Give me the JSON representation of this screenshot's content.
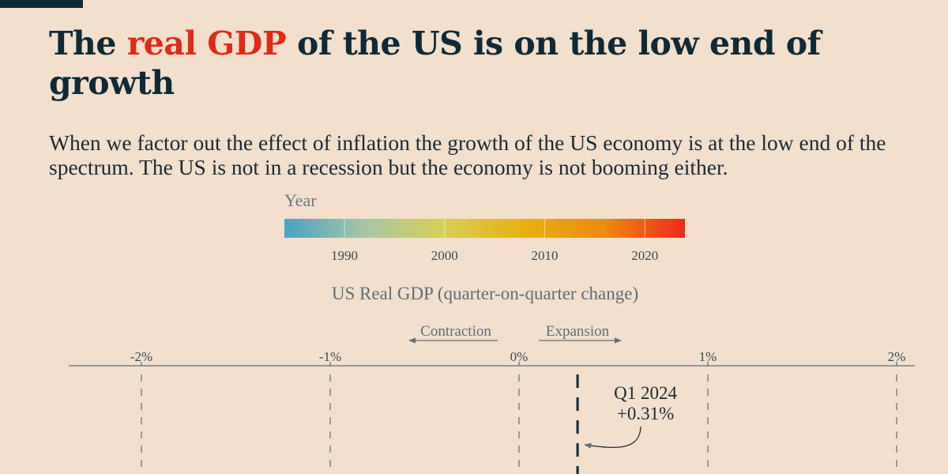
{
  "colors": {
    "background": "#f2dfcc",
    "ink": "#0f2a36",
    "highlight": "#e02a18",
    "axis": "#5f6e78",
    "marker": "#0f2a36",
    "corner_bar": "#0f2a36"
  },
  "header": {
    "title_before": "The ",
    "title_highlight": "real GDP",
    "title_after": " of the US is on the low end of growth",
    "subtitle": "When we factor out the effect of inflation the growth of the US economy is at the low end of the spectrum. The US is not in a recession but the economy is not booming either."
  },
  "chart_data": {
    "type": "strip",
    "legend": {
      "title": "Year",
      "kind": "color-gradient",
      "domain": [
        1984,
        2024
      ],
      "ticks": [
        1990,
        2000,
        2010,
        2020
      ],
      "tick_labels": [
        "1990",
        "2000",
        "2010",
        "2020"
      ],
      "color_stops": [
        "#4aa3c4",
        "#a6c6a6",
        "#d8ce54",
        "#e7b012",
        "#ee8a12",
        "#ee2a1a"
      ]
    },
    "axis": {
      "title": "US Real GDP (quarter-on-quarter change)",
      "xlim": [
        -2.35,
        2.2
      ],
      "ticks": [
        -2,
        -1,
        0,
        1,
        2
      ],
      "tick_labels": [
        "-2%",
        "-1%",
        "0%",
        "1%",
        "2%"
      ],
      "grid": true,
      "gridline_style": "dashed"
    },
    "direction_labels": {
      "left": "Contraction",
      "right": "Expansion"
    },
    "highlight": {
      "period": "Q1 2024",
      "value": 0.31,
      "label_line1": "Q1 2024",
      "label_line2": "+0.31%"
    }
  }
}
